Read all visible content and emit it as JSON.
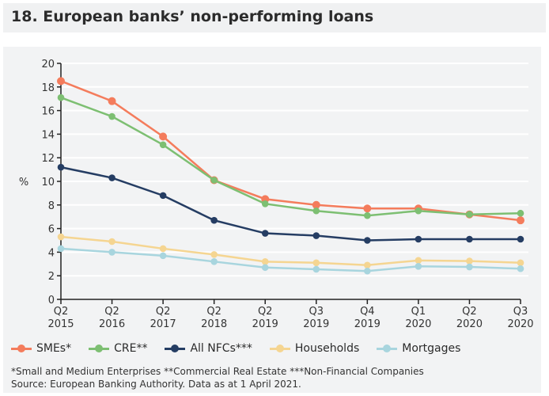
{
  "title": "18. European banks’ non-performing loans",
  "chart_data": {
    "type": "line",
    "ylabel": "%",
    "ylim": [
      0,
      20
    ],
    "yticks": [
      0,
      2,
      4,
      6,
      8,
      10,
      12,
      14,
      16,
      18,
      20
    ],
    "grid": true,
    "legend_position": "bottom",
    "categories": [
      [
        "Q2",
        "2015"
      ],
      [
        "Q2",
        "2016"
      ],
      [
        "Q2",
        "2017"
      ],
      [
        "Q2",
        "2018"
      ],
      [
        "Q2",
        "2019"
      ],
      [
        "Q3",
        "2019"
      ],
      [
        "Q4",
        "2019"
      ],
      [
        "Q1",
        "2020"
      ],
      [
        "Q2",
        "2020"
      ],
      [
        "Q3",
        "2020"
      ]
    ],
    "series": [
      {
        "name": "SMEs*",
        "color": "#f47c5c",
        "values": [
          18.5,
          16.8,
          13.8,
          10.1,
          8.5,
          8.0,
          7.7,
          7.7,
          7.2,
          6.7
        ]
      },
      {
        "name": "CRE**",
        "color": "#7dbf72",
        "values": [
          17.1,
          15.5,
          13.1,
          10.1,
          8.1,
          7.5,
          7.1,
          7.5,
          7.2,
          7.3
        ]
      },
      {
        "name": "All NFCs***",
        "color": "#253d63",
        "values": [
          11.2,
          10.3,
          8.8,
          6.7,
          5.6,
          5.4,
          5.0,
          5.1,
          5.1,
          5.1
        ]
      },
      {
        "name": "Households",
        "color": "#f5d591",
        "values": [
          5.3,
          4.9,
          4.3,
          3.8,
          3.2,
          3.1,
          2.9,
          3.3,
          3.25,
          3.1
        ]
      },
      {
        "name": "Mortgages",
        "color": "#a8d5de",
        "values": [
          4.3,
          4.0,
          3.7,
          3.2,
          2.7,
          2.55,
          2.4,
          2.8,
          2.75,
          2.6
        ]
      }
    ]
  },
  "footnote": "*Small and Medium Enterprises **Commercial Real Estate ***Non-Financial Companies",
  "source": "Source: European Banking Authority. Data as at 1 April 2021."
}
